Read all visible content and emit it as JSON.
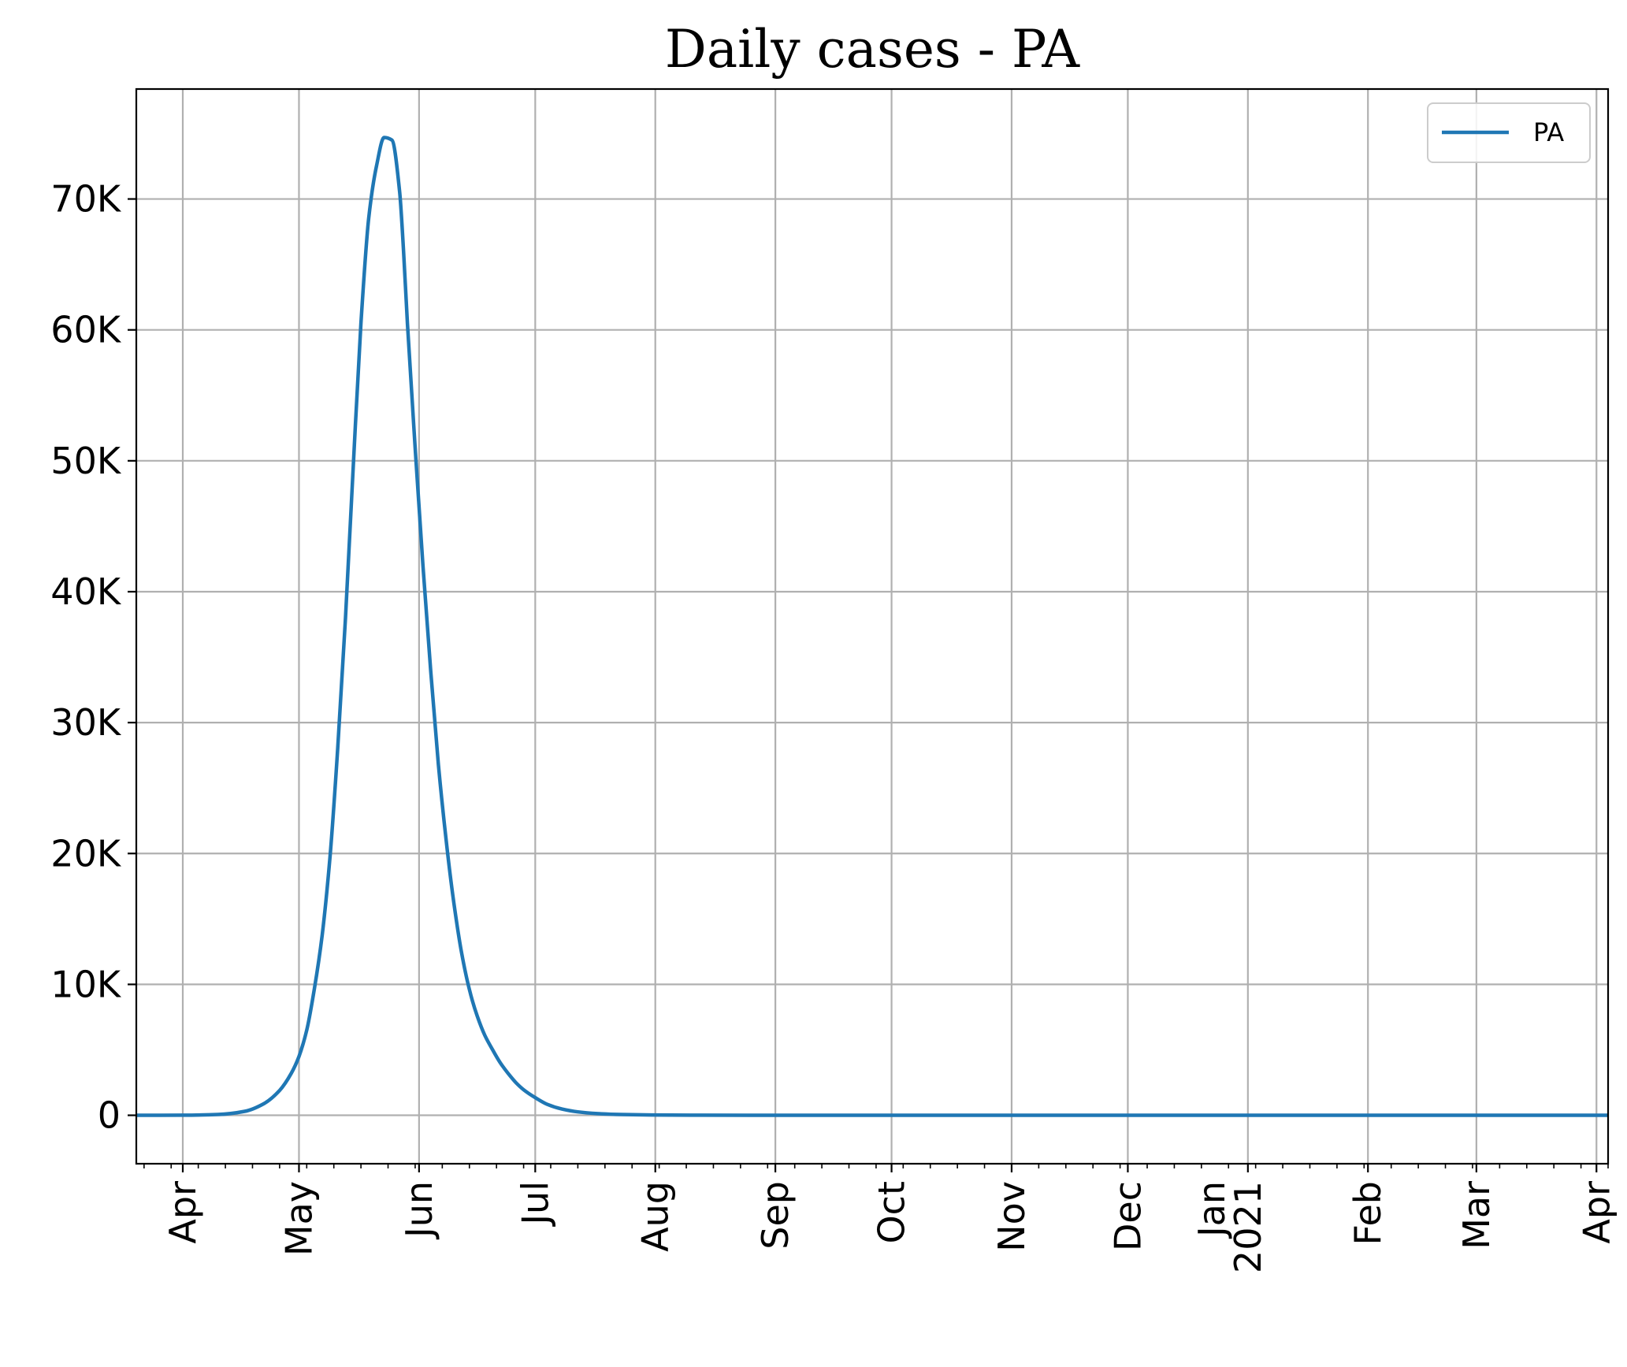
{
  "chart_data": {
    "type": "line",
    "title": "Daily cases - PA",
    "xlabel": "",
    "ylabel": "",
    "ylim": [
      -3700,
      78400
    ],
    "xlim": [
      "2020-03-20",
      "2021-04-04"
    ],
    "grid": true,
    "legend_position": "top-right",
    "y_ticks": [
      {
        "value": 0,
        "label": "0"
      },
      {
        "value": 10000,
        "label": "10K"
      },
      {
        "value": 20000,
        "label": "20K"
      },
      {
        "value": 30000,
        "label": "30K"
      },
      {
        "value": 40000,
        "label": "40K"
      },
      {
        "value": 50000,
        "label": "50K"
      },
      {
        "value": 60000,
        "label": "60K"
      },
      {
        "value": 70000,
        "label": "70K"
      }
    ],
    "x_ticks": [
      {
        "date": "2020-04-01",
        "label": "Apr"
      },
      {
        "date": "2020-05-01",
        "label": "May"
      },
      {
        "date": "2020-06-01",
        "label": "Jun"
      },
      {
        "date": "2020-07-01",
        "label": "Jul"
      },
      {
        "date": "2020-08-01",
        "label": "Aug"
      },
      {
        "date": "2020-09-01",
        "label": "Sep"
      },
      {
        "date": "2020-10-01",
        "label": "Oct"
      },
      {
        "date": "2020-11-01",
        "label": "Nov"
      },
      {
        "date": "2020-12-01",
        "label": "Dec"
      },
      {
        "date": "2021-01-01",
        "label": "Jan\n2021"
      },
      {
        "date": "2021-02-01",
        "label": "Feb"
      },
      {
        "date": "2021-03-01",
        "label": "Mar"
      },
      {
        "date": "2021-04-01",
        "label": "Apr"
      }
    ],
    "series": [
      {
        "name": "PA",
        "color": "#1f77b4",
        "x": [
          "2020-03-20",
          "2020-04-01",
          "2020-04-10",
          "2020-04-17",
          "2020-04-22",
          "2020-04-26",
          "2020-04-29",
          "2020-05-01",
          "2020-05-03",
          "2020-05-05",
          "2020-05-07",
          "2020-05-09",
          "2020-05-11",
          "2020-05-13",
          "2020-05-15",
          "2020-05-17",
          "2020-05-19",
          "2020-05-21",
          "2020-05-23",
          "2020-05-25",
          "2020-05-27",
          "2020-05-28",
          "2020-05-29",
          "2020-05-31",
          "2020-06-02",
          "2020-06-04",
          "2020-06-06",
          "2020-06-08",
          "2020-06-10",
          "2020-06-12",
          "2020-06-14",
          "2020-06-16",
          "2020-06-18",
          "2020-06-20",
          "2020-06-22",
          "2020-06-24",
          "2020-06-26",
          "2020-06-28",
          "2020-07-01",
          "2020-07-04",
          "2020-07-08",
          "2020-07-12",
          "2020-07-17",
          "2020-07-23",
          "2020-07-31",
          "2020-08-10",
          "2020-08-25",
          "2020-09-15",
          "2020-10-15",
          "2020-11-15",
          "2020-12-15",
          "2021-01-15",
          "2021-02-15",
          "2021-03-15",
          "2021-04-04"
        ],
        "y": [
          0,
          10,
          60,
          300,
          900,
          1900,
          3200,
          4500,
          6500,
          9700,
          13800,
          19700,
          28000,
          38000,
          49500,
          60500,
          68500,
          72500,
          74700,
          74500,
          70500,
          66000,
          60500,
          51000,
          42000,
          34000,
          26800,
          21000,
          16200,
          12400,
          9600,
          7600,
          6100,
          5000,
          4000,
          3200,
          2500,
          1950,
          1350,
          850,
          470,
          260,
          130,
          60,
          25,
          10,
          3,
          1,
          0,
          0,
          0,
          0,
          0,
          0,
          0
        ]
      }
    ]
  }
}
